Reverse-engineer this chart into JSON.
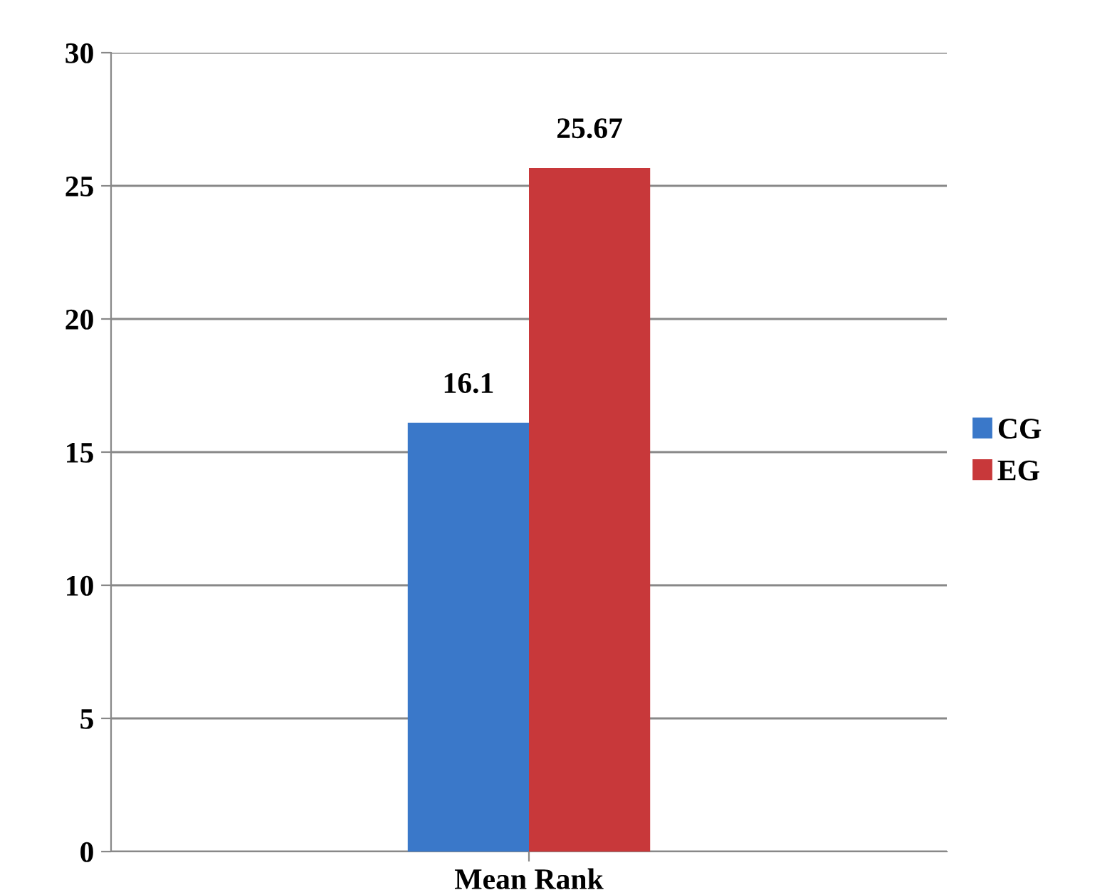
{
  "chart_data": {
    "type": "bar",
    "categories": [
      "Mean Rank"
    ],
    "series": [
      {
        "name": "CG",
        "color": "#3a78c9",
        "values": [
          16.1
        ]
      },
      {
        "name": "EG",
        "color": "#c8383a",
        "values": [
          25.67
        ]
      }
    ],
    "ylim": [
      0,
      30
    ],
    "yticks": [
      0,
      5,
      10,
      15,
      20,
      25,
      30
    ],
    "grid": "y",
    "legend": "right",
    "data_labels": true
  }
}
